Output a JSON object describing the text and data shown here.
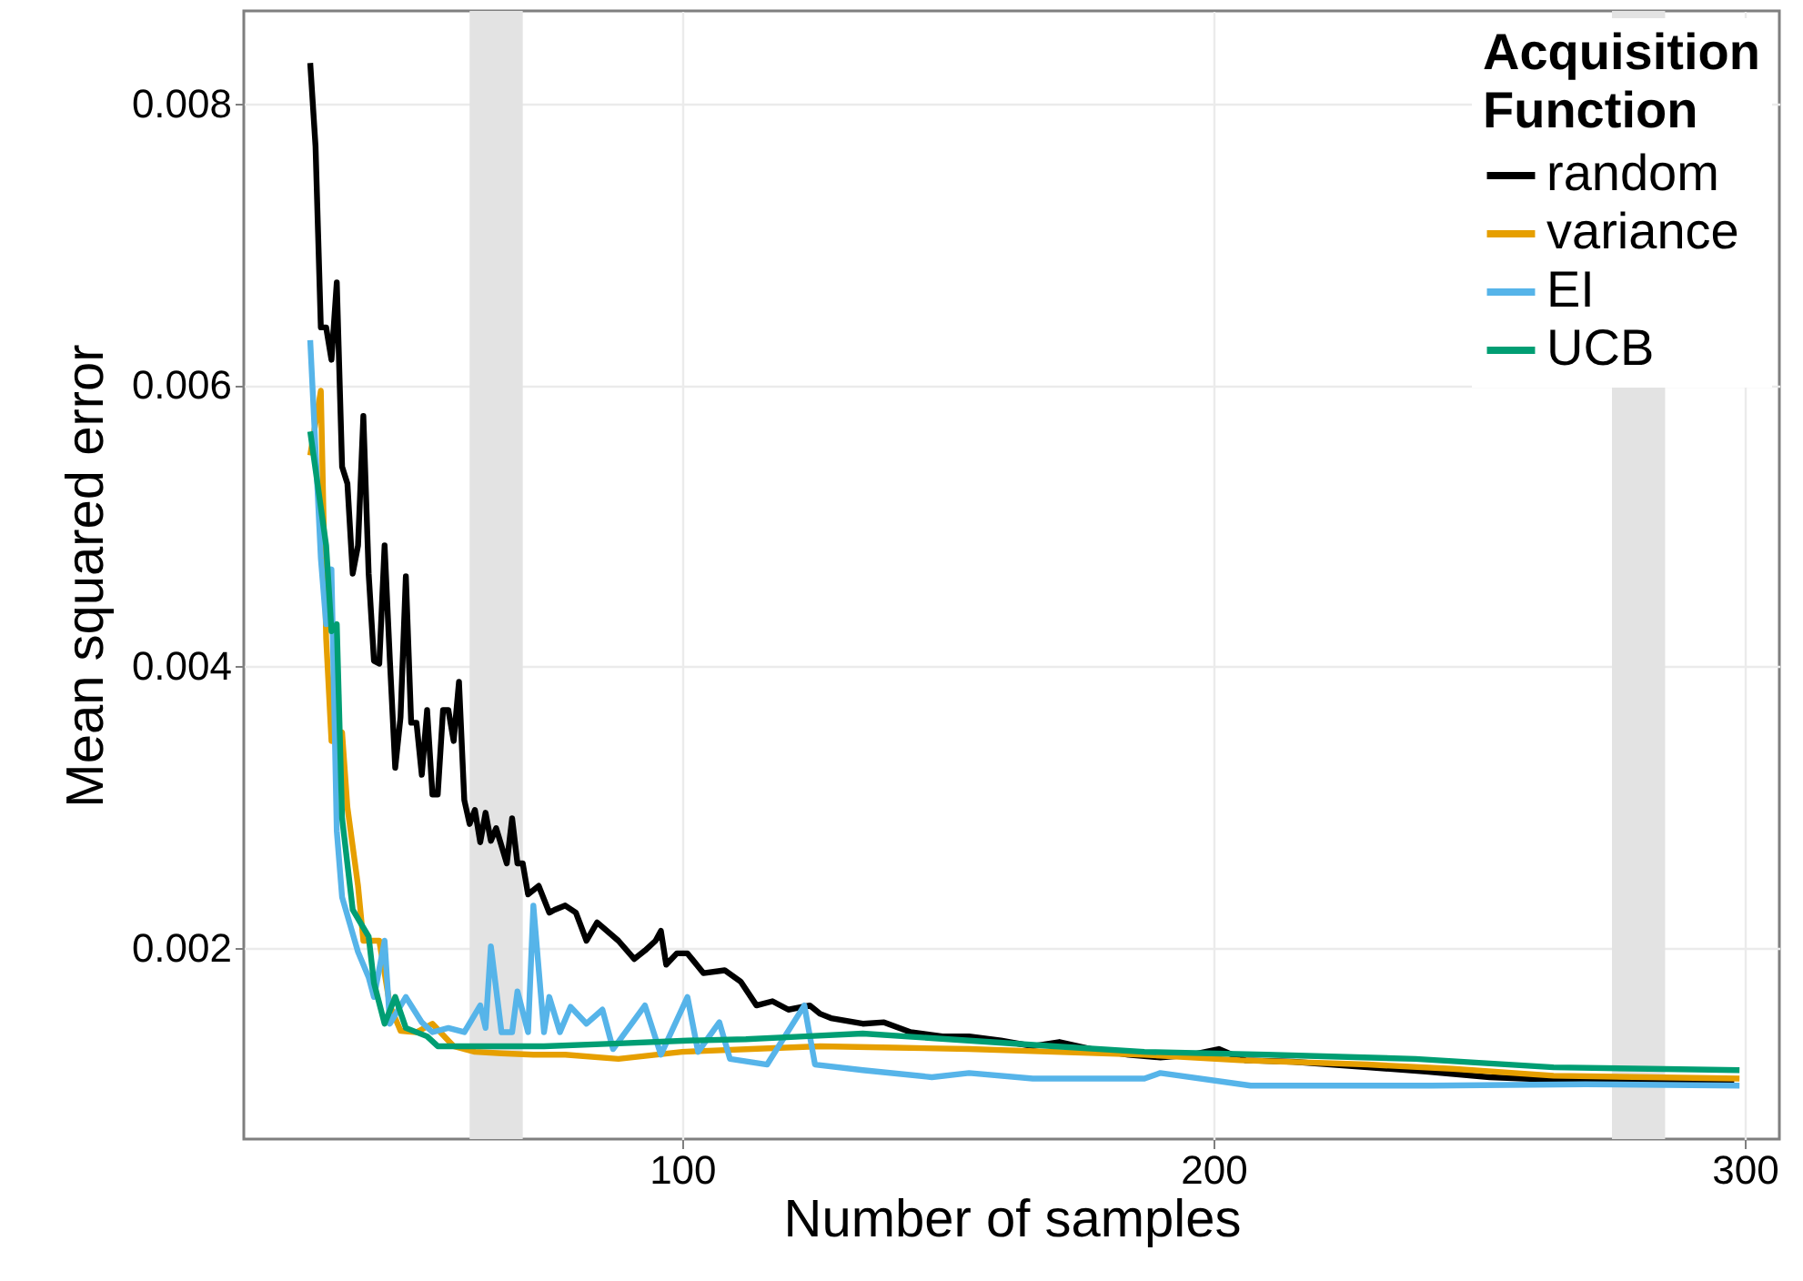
{
  "chart_data": {
    "type": "line",
    "xlabel": "Number of samples",
    "ylabel": "Mean squared error",
    "legend_title": "Acquisition Function",
    "xlim": [
      17.5,
      306.5
    ],
    "ylim": [
      0.00064,
      0.00866
    ],
    "xticks": [
      100,
      200,
      300
    ],
    "yticks": [
      0.002,
      0.004,
      0.006,
      0.008
    ],
    "grid": true,
    "legend": "top right",
    "bands": [
      {
        "axis": "x",
        "from": 60,
        "to": 70,
        "color": "#e3e3e3"
      },
      {
        "axis": "x",
        "from": 275,
        "to": 285,
        "color": "#e3e3e3"
      }
    ],
    "series": [
      {
        "name": "random",
        "color": "#000000",
        "x": [
          30,
          31,
          32,
          33,
          34,
          35,
          36,
          37,
          38,
          39,
          40,
          41,
          42,
          43,
          44,
          45,
          46,
          47,
          48,
          49,
          50,
          51,
          52,
          53,
          54,
          55,
          56,
          57,
          58,
          59,
          60,
          61,
          62,
          63,
          64,
          65,
          67,
          68,
          69,
          70,
          71,
          73,
          75,
          76,
          78,
          80,
          82,
          84,
          88,
          91,
          93,
          95,
          96,
          97,
          99,
          101,
          104,
          108,
          111,
          114,
          117,
          120,
          124,
          126,
          128,
          131,
          134,
          138,
          143,
          149,
          154,
          160,
          166,
          171,
          177,
          184,
          190,
          196,
          201,
          206,
          215,
          229,
          240,
          252,
          265,
          280,
          290,
          298
        ],
        "values": [
          0.00829,
          0.0077,
          0.00641,
          0.00641,
          0.00618,
          0.00673,
          0.00542,
          0.0053,
          0.00466,
          0.00486,
          0.00578,
          0.00466,
          0.00404,
          0.00402,
          0.00486,
          0.00404,
          0.00328,
          0.00364,
          0.00464,
          0.0036,
          0.0036,
          0.00323,
          0.00369,
          0.00309,
          0.00309,
          0.00369,
          0.00369,
          0.00347,
          0.00389,
          0.00305,
          0.00288,
          0.00298,
          0.00275,
          0.00296,
          0.00276,
          0.00285,
          0.0026,
          0.00292,
          0.0026,
          0.0026,
          0.00238,
          0.00244,
          0.00225,
          0.00227,
          0.0023,
          0.00225,
          0.00205,
          0.00218,
          0.00205,
          0.00192,
          0.00198,
          0.00205,
          0.00212,
          0.00188,
          0.00196,
          0.00196,
          0.00182,
          0.00184,
          0.00176,
          0.00159,
          0.00162,
          0.00156,
          0.00159,
          0.00153,
          0.0015,
          0.00148,
          0.00146,
          0.00147,
          0.0014,
          0.00137,
          0.00137,
          0.00134,
          0.0013,
          0.00133,
          0.00128,
          0.00124,
          0.00122,
          0.00124,
          0.00128,
          0.0012,
          0.00119,
          0.00115,
          0.00112,
          0.00108,
          0.00106,
          0.00105,
          0.00104,
          0.00104
        ]
      },
      {
        "name": "variance",
        "color": "#e69f00",
        "x": [
          30,
          32,
          33,
          34,
          36,
          37,
          39,
          40,
          43,
          45,
          47,
          50,
          53,
          57,
          61,
          66,
          72,
          78,
          88,
          100,
          113,
          126,
          140,
          154,
          170,
          187,
          205,
          229,
          245,
          264,
          282,
          299
        ],
        "values": [
          0.0055,
          0.00596,
          0.0042,
          0.00347,
          0.00353,
          0.003,
          0.00244,
          0.00205,
          0.00205,
          0.00159,
          0.00141,
          0.0014,
          0.00146,
          0.0013,
          0.00126,
          0.00125,
          0.00124,
          0.00124,
          0.00121,
          0.00126,
          0.00128,
          0.0013,
          0.00129,
          0.00128,
          0.00126,
          0.00124,
          0.0012,
          0.00117,
          0.00114,
          0.00109,
          0.00108,
          0.00107
        ]
      },
      {
        "name": "EI",
        "color": "#56b4e9",
        "x": [
          30,
          32,
          33,
          34,
          35,
          36,
          39,
          41,
          42,
          44,
          45,
          48,
          51,
          53,
          56,
          59,
          62,
          63,
          64,
          66,
          68,
          69,
          71,
          72,
          74,
          75,
          77,
          79,
          82,
          85,
          87,
          93,
          96,
          101,
          103,
          107,
          109,
          116,
          123,
          125,
          134,
          147,
          154,
          166,
          187,
          190,
          207,
          241,
          270,
          299
        ],
        "values": [
          0.00632,
          0.00477,
          0.0043,
          0.00469,
          0.00283,
          0.00236,
          0.00197,
          0.00179,
          0.00165,
          0.00205,
          0.00146,
          0.00165,
          0.00147,
          0.0014,
          0.00143,
          0.0014,
          0.00159,
          0.00143,
          0.00201,
          0.0014,
          0.0014,
          0.00169,
          0.0014,
          0.0023,
          0.0014,
          0.00165,
          0.0014,
          0.00158,
          0.00146,
          0.00156,
          0.00128,
          0.00159,
          0.00124,
          0.00165,
          0.00126,
          0.00147,
          0.00121,
          0.00117,
          0.00159,
          0.00117,
          0.00113,
          0.00108,
          0.00111,
          0.00107,
          0.00107,
          0.00111,
          0.00102,
          0.00102,
          0.00103,
          0.00102
        ]
      },
      {
        "name": "UCB",
        "color": "#009e73",
        "x": [
          30,
          33,
          34,
          35,
          36,
          38,
          41,
          42,
          44,
          46,
          48,
          52,
          54,
          63,
          74,
          88,
          101,
          112,
          123,
          134,
          154,
          170,
          187,
          210,
          238,
          264,
          282,
          299
        ],
        "values": [
          0.00567,
          0.00486,
          0.00425,
          0.0043,
          0.00292,
          0.00227,
          0.00208,
          0.00175,
          0.00146,
          0.00165,
          0.00143,
          0.00137,
          0.0013,
          0.0013,
          0.0013,
          0.00132,
          0.00134,
          0.00135,
          0.00137,
          0.00139,
          0.00134,
          0.0013,
          0.00126,
          0.00124,
          0.00121,
          0.00115,
          0.00114,
          0.00113
        ]
      }
    ]
  }
}
